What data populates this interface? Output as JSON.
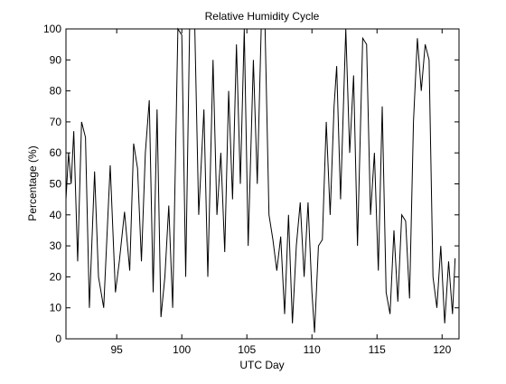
{
  "chart_data": {
    "type": "line",
    "title": "Relative Humidity Cycle",
    "x_label": "UTC Day",
    "y_label": "Percentage (%)",
    "x": [
      91.1,
      91.3,
      91.5,
      91.7,
      92.0,
      92.3,
      92.6,
      92.9,
      93.3,
      93.6,
      94.0,
      94.5,
      94.9,
      95.2,
      95.6,
      96.0,
      96.3,
      96.6,
      96.9,
      97.2,
      97.5,
      97.8,
      98.1,
      98.4,
      98.7,
      99.0,
      99.3,
      99.7,
      100.0,
      100.3,
      100.6,
      101.0,
      101.3,
      101.7,
      102.0,
      102.4,
      102.7,
      103.0,
      103.3,
      103.6,
      103.9,
      104.2,
      104.5,
      104.8,
      105.1,
      105.5,
      105.8,
      106.1,
      106.4,
      106.7,
      107.0,
      107.3,
      107.6,
      107.9,
      108.2,
      108.5,
      108.8,
      109.1,
      109.4,
      109.7,
      110.0,
      110.2,
      110.5,
      110.8,
      111.1,
      111.4,
      111.7,
      111.9,
      112.2,
      112.6,
      112.9,
      113.2,
      113.5,
      113.9,
      114.2,
      114.5,
      114.8,
      115.1,
      115.4,
      115.7,
      116.0,
      116.3,
      116.6,
      116.9,
      117.2,
      117.5,
      117.8,
      118.1,
      118.4,
      118.7,
      119.0,
      119.3,
      119.6,
      119.9,
      120.2,
      120.5,
      120.8,
      121.0
    ],
    "series": [
      {
        "name": "Relative Humidity",
        "color": "#000000",
        "values": [
          45,
          60,
          50,
          67,
          25,
          70,
          65,
          10,
          54,
          20,
          10,
          56,
          15,
          25,
          41,
          22,
          63,
          55,
          25,
          60,
          77,
          15,
          74,
          7,
          20,
          43,
          10,
          100,
          98,
          20,
          100,
          100,
          40,
          74,
          20,
          90,
          40,
          60,
          28,
          80,
          45,
          95,
          50,
          100,
          30,
          90,
          50,
          100,
          100,
          40,
          32,
          22,
          33,
          8,
          40,
          5,
          30,
          44,
          20,
          44,
          15,
          2,
          30,
          32,
          70,
          40,
          75,
          88,
          45,
          100,
          60,
          85,
          30,
          97,
          95,
          40,
          60,
          22,
          75,
          15,
          8,
          35,
          12,
          40,
          38,
          13,
          70,
          97,
          80,
          95,
          90,
          20,
          10,
          30,
          5,
          25,
          8,
          26
        ]
      }
    ],
    "xlim": [
      91.1,
      121.3
    ],
    "ylim": [
      0,
      100
    ],
    "xticks": [
      95,
      100,
      105,
      110,
      115,
      120
    ],
    "yticks": [
      0,
      10,
      20,
      30,
      40,
      50,
      60,
      70,
      80,
      90,
      100
    ]
  }
}
